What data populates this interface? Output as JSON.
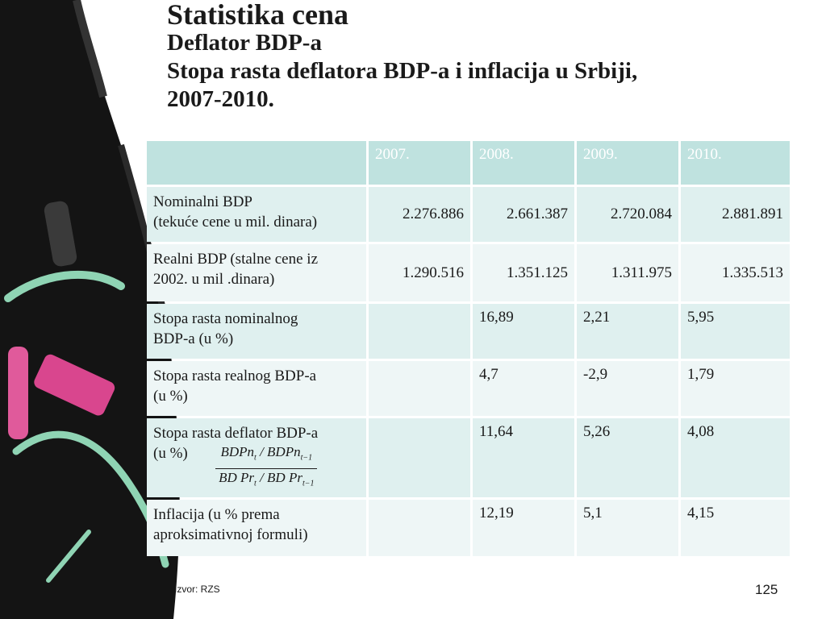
{
  "title": {
    "main": "Statistika cena",
    "line2": "Deflator BDP-a",
    "line3": "Stopa rasta deflatora BDP-a i inflacija u Srbiji,",
    "line4": "2007-2010."
  },
  "table": {
    "headers": [
      "",
      "2007.",
      "2008.",
      "2009.",
      "2010."
    ],
    "rows": [
      {
        "label_line1": "Nominalni BDP",
        "label_line2": "(tekuće cene u mil. dinara)",
        "values": [
          "2.276.886",
          "2.661.387",
          "2.720.084",
          "2.881.891"
        ]
      },
      {
        "label_line1": "Realni BDP (stalne cene iz",
        "label_line2": "2002.  u mil .dinara)",
        "values": [
          "1.290.516",
          "1.351.125",
          "1.311.975",
          "1.335.513"
        ]
      },
      {
        "label_line1": "Stopa rasta nominalnog",
        "label_line2": "BDP-a (u %)",
        "values": [
          "",
          "16,89",
          "2,21",
          "5,95"
        ]
      },
      {
        "label_line1": "Stopa rasta realnog BDP-a",
        "label_line2": "(u %)",
        "values": [
          "",
          "4,7",
          "-2,9",
          "1,79"
        ]
      },
      {
        "label_line1": "Stopa rasta deflator BDP-a",
        "label_line2": "(u %)",
        "formula_num": "BDPn",
        "formula_num_sub1": "t",
        "formula_num_mid": " / BDPn",
        "formula_num_sub2": "t−1",
        "formula_den": "BD Pr",
        "formula_den_sub1": "t",
        "formula_den_mid": " / BD Pr",
        "formula_den_sub2": "t−1",
        "values": [
          "",
          "11,64",
          "5,26",
          "4,08"
        ]
      },
      {
        "label_line1": "Inflacija  (u % prema",
        "label_line2": "aproksimativnoj formuli)",
        "values": [
          "",
          "12,19",
          "5,1",
          "4,15"
        ]
      }
    ]
  },
  "source": "Izvor: RZS",
  "page_number": "125",
  "colors": {
    "header_bg": "#bfe2df",
    "row_dark": "#dff0ef",
    "row_light": "#eef6f6",
    "chalkboard": "#111111",
    "chalk_pink": "#d9468e",
    "chalk_green": "#8fd4b4"
  },
  "decoration": {
    "left_panel": "chalkboard-with-chalk-sticks"
  }
}
